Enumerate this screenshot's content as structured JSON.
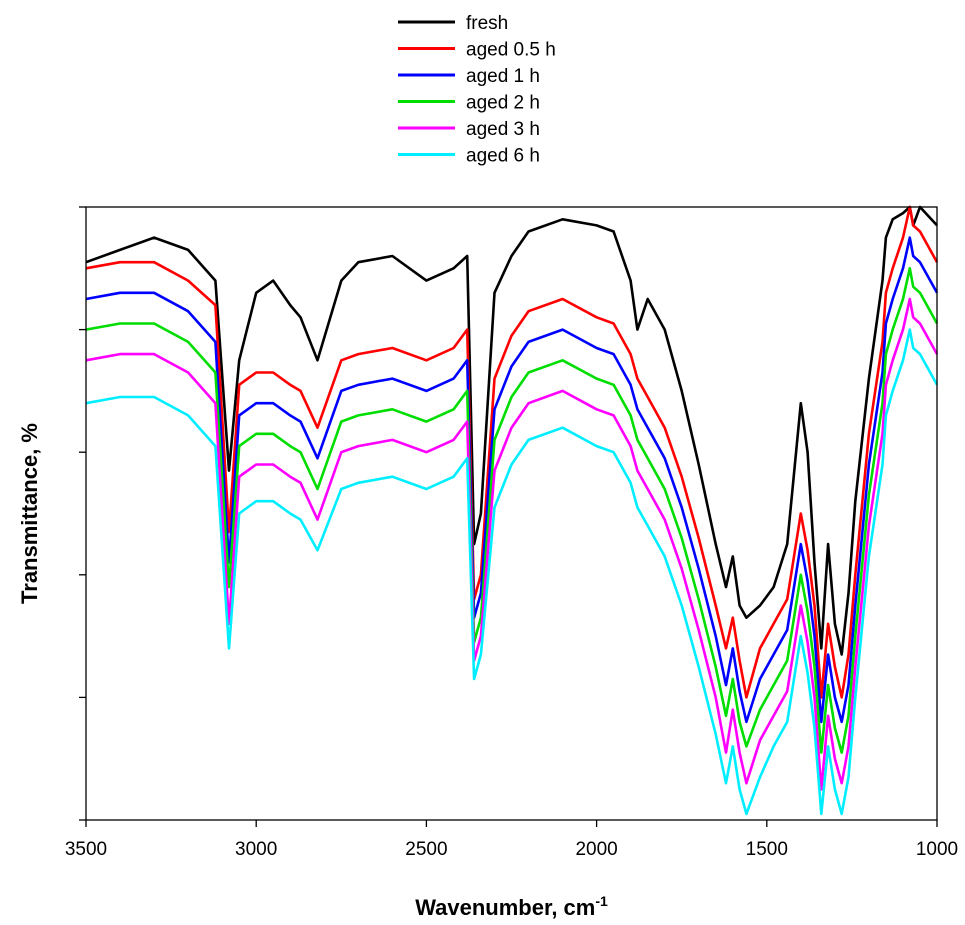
{
  "chart_data": {
    "type": "line",
    "title": "",
    "xlabel": "Wavenumber, cm",
    "xlabel_superscript": "-1",
    "ylabel": "Transmittance, %",
    "xlim": [
      3500,
      1000
    ],
    "x_reversed": true,
    "ylim": [
      0,
      100
    ],
    "y_tick_labels_shown": false,
    "y_ticks": [
      0,
      20,
      40,
      60,
      80,
      100
    ],
    "x_ticks": [
      3500,
      3000,
      2500,
      2000,
      1500,
      1000
    ],
    "x_tick_labels": [
      "3500",
      "3000",
      "2500",
      "2000",
      "1500",
      "1000"
    ],
    "grid": false,
    "legend_position": "top-center",
    "x": [
      3500,
      3400,
      3300,
      3200,
      3120,
      3080,
      3050,
      3000,
      2950,
      2900,
      2870,
      2820,
      2750,
      2700,
      2600,
      2500,
      2420,
      2380,
      2360,
      2340,
      2300,
      2250,
      2200,
      2100,
      2000,
      1950,
      1900,
      1880,
      1850,
      1800,
      1750,
      1700,
      1650,
      1620,
      1600,
      1580,
      1560,
      1520,
      1480,
      1440,
      1400,
      1380,
      1360,
      1340,
      1320,
      1300,
      1280,
      1260,
      1240,
      1200,
      1160,
      1150,
      1130,
      1100,
      1080,
      1070,
      1050,
      1000
    ],
    "series": [
      {
        "name": "fresh",
        "color": "#000000",
        "values": [
          91,
          93,
          95,
          93,
          88,
          57,
          75,
          86,
          88,
          84,
          82,
          75,
          88,
          91,
          92,
          88,
          90,
          92,
          45,
          50,
          86,
          92,
          96,
          98,
          97,
          96,
          88,
          80,
          85,
          80,
          70,
          58,
          45,
          38,
          43,
          35,
          33,
          35,
          38,
          45,
          68,
          60,
          42,
          28,
          45,
          32,
          27,
          37,
          52,
          72,
          88,
          95,
          98,
          99,
          100,
          97,
          100,
          97
        ]
      },
      {
        "name": "aged 0.5 h",
        "color": "#ff0000",
        "values": [
          90,
          91,
          91,
          88,
          84,
          47,
          71,
          73,
          73,
          71,
          70,
          64,
          75,
          76,
          77,
          75,
          77,
          80,
          36,
          40,
          72,
          79,
          83,
          85,
          82,
          81,
          76,
          72,
          69,
          64,
          56,
          46,
          35,
          28,
          33,
          26,
          20,
          28,
          32,
          36,
          50,
          44,
          35,
          20,
          32,
          25,
          20,
          27,
          40,
          63,
          78,
          86,
          90,
          95,
          100,
          97,
          96,
          91
        ]
      },
      {
        "name": "aged 1 h",
        "color": "#0000ff",
        "values": [
          85,
          86,
          86,
          83,
          78,
          42,
          66,
          68,
          68,
          66,
          65,
          59,
          70,
          71,
          72,
          70,
          72,
          75,
          33,
          37,
          67,
          74,
          78,
          80,
          77,
          76,
          71,
          67,
          64,
          59,
          51,
          41,
          30,
          22,
          28,
          21,
          16,
          23,
          27,
          31,
          45,
          39,
          30,
          16,
          27,
          20,
          16,
          22,
          35,
          58,
          73,
          81,
          85,
          90,
          95,
          92,
          91,
          86
        ]
      },
      {
        "name": "aged 2 h",
        "color": "#00dd00",
        "values": [
          80,
          81,
          81,
          78,
          73,
          38,
          61,
          63,
          63,
          61,
          60,
          54,
          65,
          66,
          67,
          65,
          67,
          70,
          29,
          33,
          62,
          69,
          73,
          75,
          72,
          71,
          66,
          62,
          59,
          54,
          46,
          36,
          25,
          17,
          23,
          16,
          12,
          18,
          22,
          26,
          40,
          34,
          25,
          11,
          22,
          15,
          11,
          17,
          30,
          53,
          68,
          76,
          80,
          85,
          90,
          87,
          86,
          81
        ]
      },
      {
        "name": "aged 3 h",
        "color": "#ff00ff",
        "values": [
          75,
          76,
          76,
          73,
          68,
          32,
          56,
          58,
          58,
          56,
          55,
          49,
          60,
          61,
          62,
          60,
          62,
          65,
          26,
          30,
          57,
          64,
          68,
          70,
          67,
          66,
          61,
          57,
          54,
          49,
          41,
          31,
          20,
          11,
          18,
          11,
          6,
          13,
          17,
          21,
          35,
          29,
          20,
          5,
          17,
          10,
          6,
          12,
          25,
          48,
          63,
          71,
          75,
          80,
          85,
          82,
          81,
          76
        ]
      },
      {
        "name": "aged 6 h",
        "color": "#00eeff",
        "values": [
          68,
          69,
          69,
          66,
          61,
          28,
          50,
          52,
          52,
          50,
          49,
          44,
          54,
          55,
          56,
          54,
          56,
          59,
          23,
          27,
          51,
          58,
          62,
          64,
          61,
          60,
          55,
          51,
          48,
          43,
          35,
          25,
          14,
          6,
          12,
          5,
          1,
          7,
          12,
          16,
          30,
          24,
          15,
          1,
          12,
          5,
          1,
          7,
          20,
          43,
          58,
          66,
          70,
          75,
          80,
          77,
          76,
          71
        ]
      }
    ]
  }
}
